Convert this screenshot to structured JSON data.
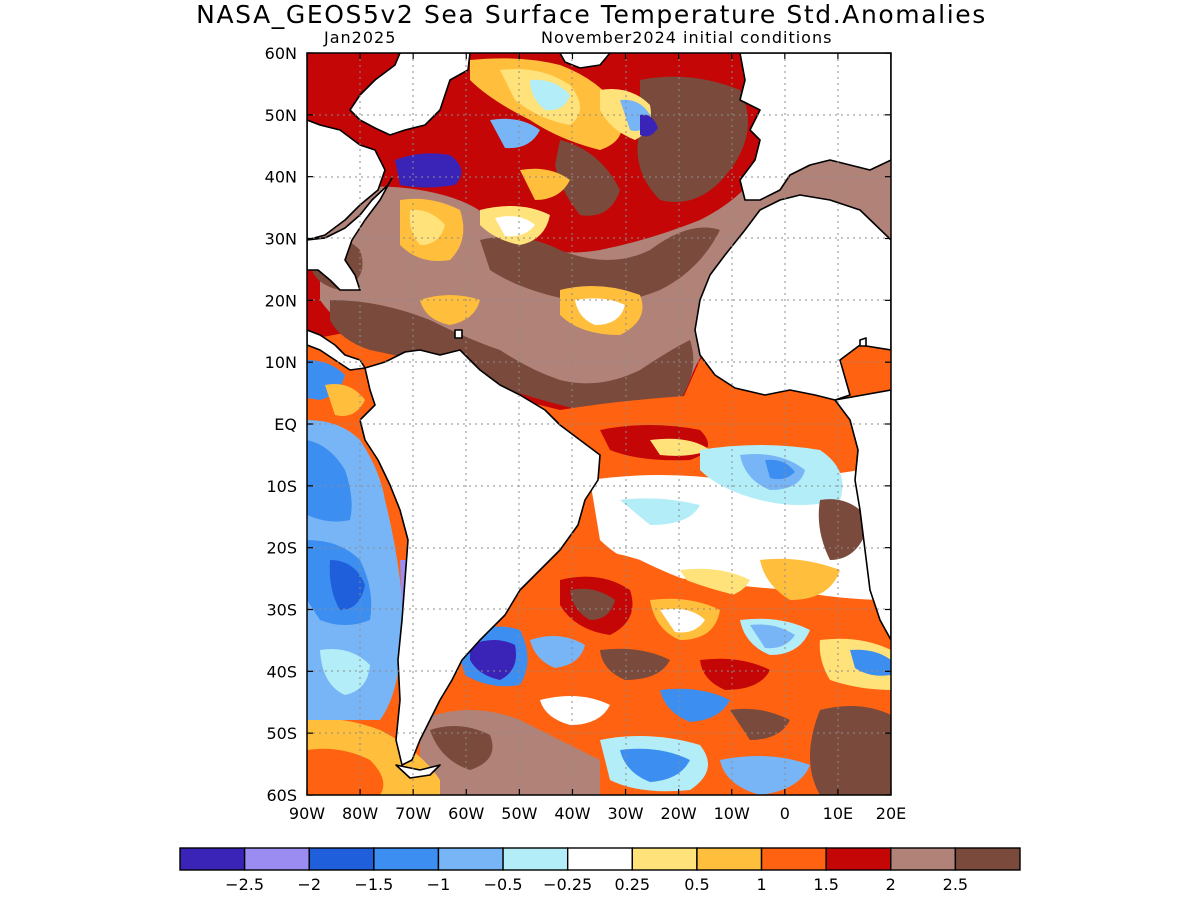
{
  "title": "NASA_GEOS5v2 Sea Surface Temperature Std.Anomalies",
  "subtitle_left": "Jan2025",
  "subtitle_right": "November2024 initial conditions",
  "lat_labels": [
    "60N",
    "50N",
    "40N",
    "30N",
    "20N",
    "10N",
    "EQ",
    "10S",
    "20S",
    "30S",
    "40S",
    "50S",
    "60S"
  ],
  "lon_labels": [
    "90W",
    "80W",
    "70W",
    "60W",
    "50W",
    "40W",
    "30W",
    "20W",
    "10W",
    "0",
    "10E",
    "20E"
  ],
  "map_extent": {
    "lon_range": [
      -90,
      20
    ],
    "lat_range": [
      -60,
      60
    ]
  },
  "colorbar": {
    "colors": [
      "#3a24b8",
      "#9b8cf2",
      "#1f5fdc",
      "#3c8ef0",
      "#78b5f6",
      "#b2edf8",
      "#ffffff",
      "#ffe27a",
      "#ffbe3c",
      "#ff6210",
      "#c40606",
      "#b08278",
      "#7a4a3c"
    ],
    "labels": [
      "−2.5",
      "−2",
      "−1.5",
      "−1",
      "−0.5",
      "−0.25",
      "0.25",
      "0.5",
      "1",
      "1.5",
      "2",
      "2.5"
    ]
  },
  "land_color": "#ffffff",
  "coast_color": "#000000"
}
